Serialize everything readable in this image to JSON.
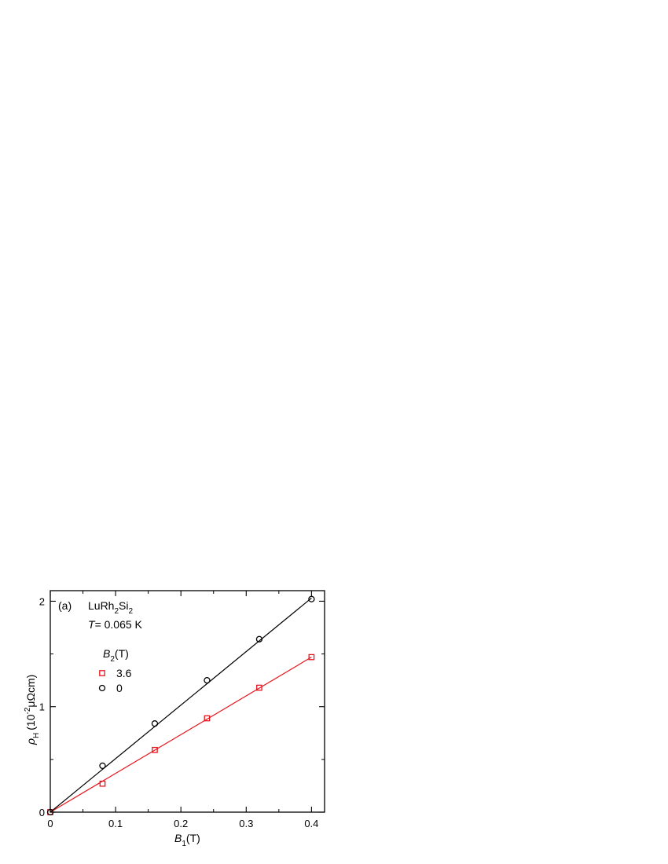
{
  "chart_data": {
    "type": "scatter",
    "panel_label": "(a)",
    "compound": {
      "base": "LuRh",
      "sub1": "2",
      "mid": "Si",
      "sub2": "2"
    },
    "temperature": {
      "symbol": "T",
      "text": "= 0.065 K"
    },
    "legend_title": {
      "symbol": "B",
      "sub": "2",
      "unit": "(T)"
    },
    "xlabel": {
      "symbol": "B",
      "sub": "1",
      "unit": "(T)"
    },
    "ylabel": {
      "symbol": "ρ",
      "sub": "H",
      "pre": "(10",
      "exp": "-2",
      "post": "μΩcm)"
    },
    "xlim": [
      0,
      0.42
    ],
    "ylim": [
      0,
      2.1
    ],
    "x_ticks": [
      "0",
      "0.1",
      "0.2",
      "0.3",
      "0.4"
    ],
    "y_ticks": [
      "0",
      "1",
      "2"
    ],
    "legend_position": "upper-left",
    "series": [
      {
        "name": "3.6",
        "color": "#e8141c",
        "marker": "square",
        "x": [
          0,
          0.08,
          0.16,
          0.24,
          0.32,
          0.4
        ],
        "y": [
          0,
          0.27,
          0.59,
          0.89,
          1.18,
          1.47
        ],
        "fit": {
          "x": [
            0,
            0.4
          ],
          "y": [
            0,
            1.47
          ]
        }
      },
      {
        "name": "0",
        "color": "#000000",
        "marker": "circle",
        "x": [
          0,
          0.08,
          0.16,
          0.24,
          0.32,
          0.4
        ],
        "y": [
          0,
          0.44,
          0.84,
          1.25,
          1.64,
          2.02
        ],
        "fit": {
          "x": [
            0,
            0.4
          ],
          "y": [
            0,
            2.03
          ]
        }
      }
    ]
  }
}
